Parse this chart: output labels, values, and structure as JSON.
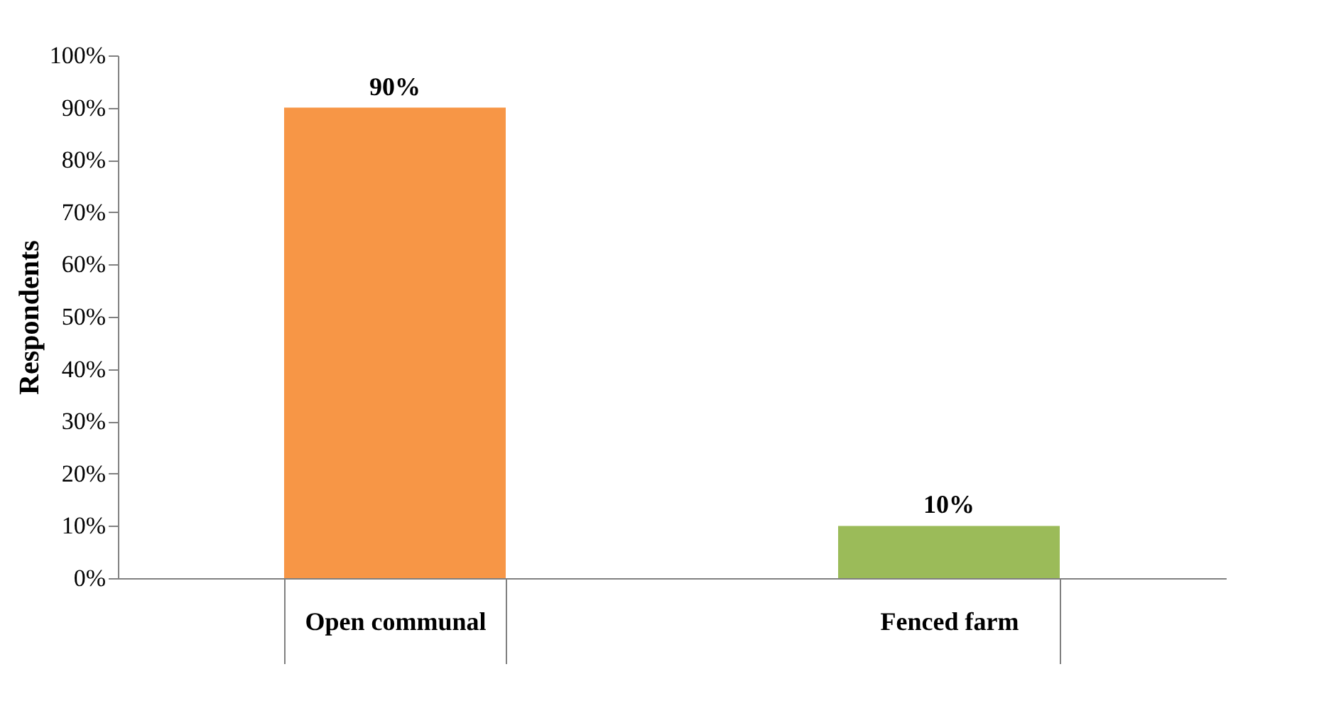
{
  "chart_data": {
    "type": "bar",
    "ylabel": "Respondents",
    "categories": [
      "Open communal",
      "Fenced farm"
    ],
    "values": [
      90,
      10
    ],
    "colors": [
      "#f79646",
      "#9bbb59"
    ],
    "value_labels": [
      "90%",
      "10%"
    ],
    "ylim": [
      0,
      100
    ],
    "yticks": [
      {
        "value": 0,
        "label": "0%"
      },
      {
        "value": 10,
        "label": "10%"
      },
      {
        "value": 20,
        "label": "20%"
      },
      {
        "value": 30,
        "label": "30%"
      },
      {
        "value": 40,
        "label": "40%"
      },
      {
        "value": 50,
        "label": "50%"
      },
      {
        "value": 60,
        "label": "60%"
      },
      {
        "value": 70,
        "label": "70%"
      },
      {
        "value": 80,
        "label": "80%"
      },
      {
        "value": 90,
        "label": "90%"
      },
      {
        "value": 100,
        "label": "100%"
      }
    ],
    "grid": false,
    "legend": false
  }
}
